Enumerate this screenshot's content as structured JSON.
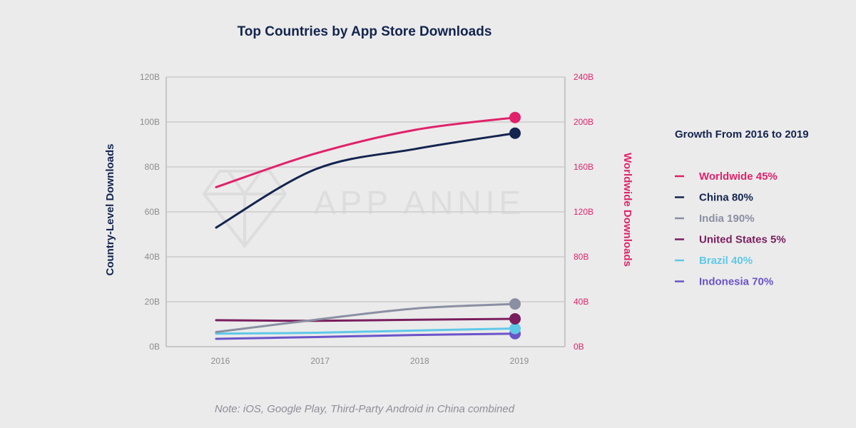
{
  "chart_data": {
    "type": "line",
    "title": "Top Countries by App Store Downloads",
    "x": [
      "2016",
      "2017",
      "2018",
      "2019"
    ],
    "y_left": {
      "label": "Country-Level Downloads",
      "ticks": [
        "0B",
        "20B",
        "40B",
        "60B",
        "80B",
        "100B",
        "120B"
      ],
      "range": [
        0,
        120
      ]
    },
    "y_right": {
      "label": "Worldwide Downloads",
      "ticks": [
        "0B",
        "40B",
        "80B",
        "120B",
        "160B",
        "200B",
        "240B"
      ],
      "range": [
        0,
        240
      ]
    },
    "series": [
      {
        "name": "Worldwide",
        "axis": "right",
        "color": "#e0226b",
        "values": [
          142,
          172,
          193,
          204
        ]
      },
      {
        "name": "China",
        "axis": "left",
        "color": "#13244f",
        "values": [
          53,
          79,
          88,
          95
        ]
      },
      {
        "name": "India",
        "axis": "left",
        "color": "#8b8fa3",
        "values": [
          6.5,
          12,
          17,
          19
        ]
      },
      {
        "name": "United States",
        "axis": "left",
        "color": "#7a1e5e",
        "values": [
          11.8,
          11.5,
          12,
          12.4
        ]
      },
      {
        "name": "Brazil",
        "axis": "left",
        "color": "#5fc8e8",
        "values": [
          5.8,
          6.2,
          7.2,
          8.1
        ]
      },
      {
        "name": "Indonesia",
        "axis": "left",
        "color": "#6a54c8",
        "values": [
          3.5,
          4.3,
          5.2,
          5.8
        ]
      }
    ],
    "legend": {
      "title": "Growth From 2016 to 2019",
      "position": "right",
      "items": [
        {
          "label": "Worldwide 45%",
          "color": "#e0226b"
        },
        {
          "label": "China 80%",
          "color": "#13244f"
        },
        {
          "label": "India 190%",
          "color": "#8b8fa3"
        },
        {
          "label": "United States 5%",
          "color": "#7a1e5e"
        },
        {
          "label": "Brazil 40%",
          "color": "#5fc8e8"
        },
        {
          "label": "Indonesia 70%",
          "color": "#6a54c8"
        }
      ]
    },
    "grid": true,
    "watermark": "APP ANNIE",
    "note": "Note: iOS, Google Play, Third-Party Android in China combined"
  }
}
